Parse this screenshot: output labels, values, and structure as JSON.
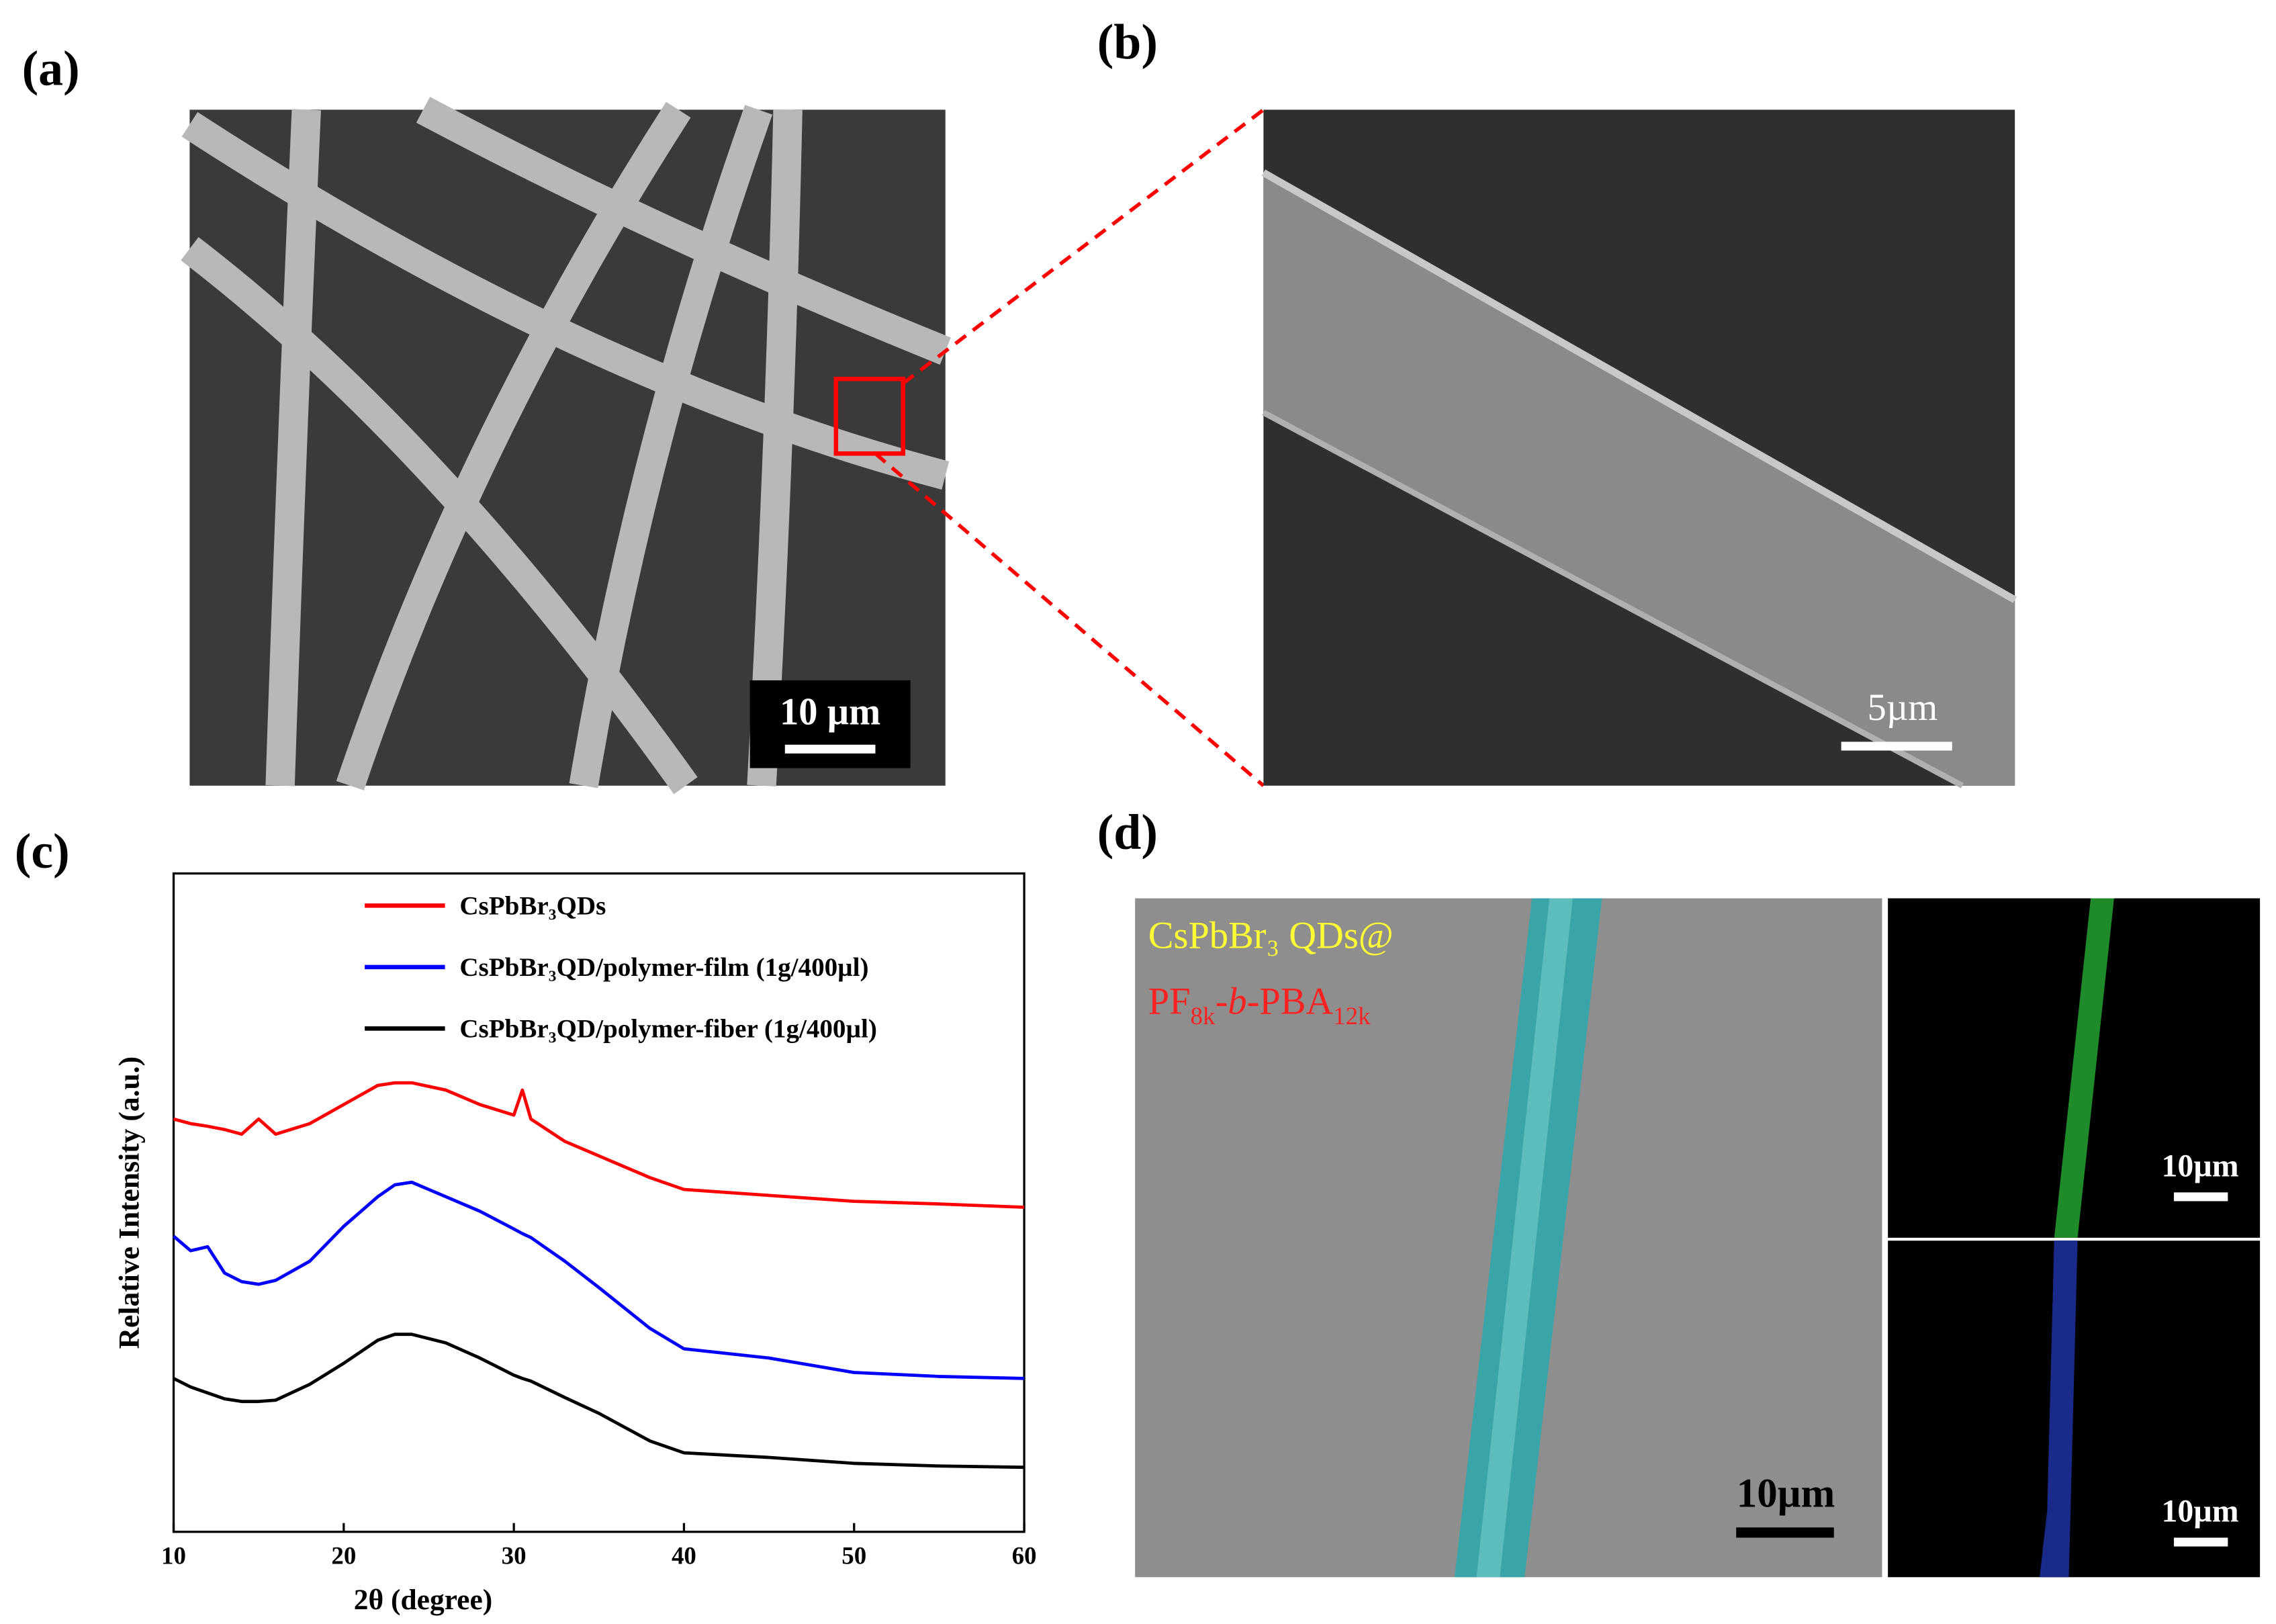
{
  "panels": {
    "a": {
      "label": "(a)",
      "scale_bar": "10 µm"
    },
    "b": {
      "label": "(b)",
      "scale_bar": "5µm"
    },
    "c": {
      "label": "(c)"
    },
    "d": {
      "label": "(d)",
      "overlay_line1": "CsPbBr₃ QDs@",
      "overlay_line2": [
        "PF",
        "8k",
        "-",
        "b",
        "-PBA",
        "12k"
      ],
      "scale_bar_main": "10µm",
      "scale_bar_green": "10µm",
      "scale_bar_blue": "10µm"
    }
  },
  "chart_data": {
    "type": "line",
    "xlabel": "2θ (degree)",
    "ylabel": "Relative Intensity (a.u.)",
    "x": [
      10,
      11,
      12,
      13,
      14,
      15,
      16,
      18,
      20,
      22,
      23,
      24,
      26,
      28,
      30,
      30.5,
      31,
      33,
      35,
      38,
      40,
      45,
      50,
      55,
      60
    ],
    "xlim": [
      10,
      60
    ],
    "xticks": [
      10,
      20,
      30,
      40,
      50,
      60
    ],
    "ylim": [
      0,
      100
    ],
    "series": [
      {
        "name": "CsPbBr₃QDs",
        "color": "#ff0000",
        "values": [
          62.7,
          62.0,
          61.6,
          61.1,
          60.4,
          62.7,
          60.4,
          62.0,
          64.9,
          67.8,
          68.2,
          68.2,
          67.1,
          64.9,
          63.3,
          67.1,
          62.7,
          59.3,
          57.1,
          53.8,
          52.0,
          51.1,
          50.2,
          49.8,
          49.3
        ]
      },
      {
        "name": "CsPbBr₃QD/polymer-film (1g/400µl)",
        "color": "#0000ff",
        "values": [
          44.9,
          42.7,
          43.3,
          39.3,
          38.0,
          37.6,
          38.2,
          41.1,
          46.4,
          50.9,
          52.7,
          53.1,
          50.9,
          48.7,
          46.0,
          45.3,
          44.7,
          41.1,
          37.1,
          30.9,
          27.8,
          26.4,
          24.2,
          23.6,
          23.3
        ]
      },
      {
        "name": "CsPbBr₃QD/polymer-fiber (1g/400µl)",
        "color": "#000000",
        "values": [
          23.3,
          22.0,
          21.1,
          20.2,
          19.8,
          19.8,
          20.0,
          22.4,
          25.6,
          29.1,
          30.0,
          30.0,
          28.7,
          26.4,
          23.8,
          23.3,
          22.9,
          20.4,
          18.0,
          13.8,
          12.0,
          11.3,
          10.4,
          10.0,
          9.8
        ]
      }
    ]
  }
}
